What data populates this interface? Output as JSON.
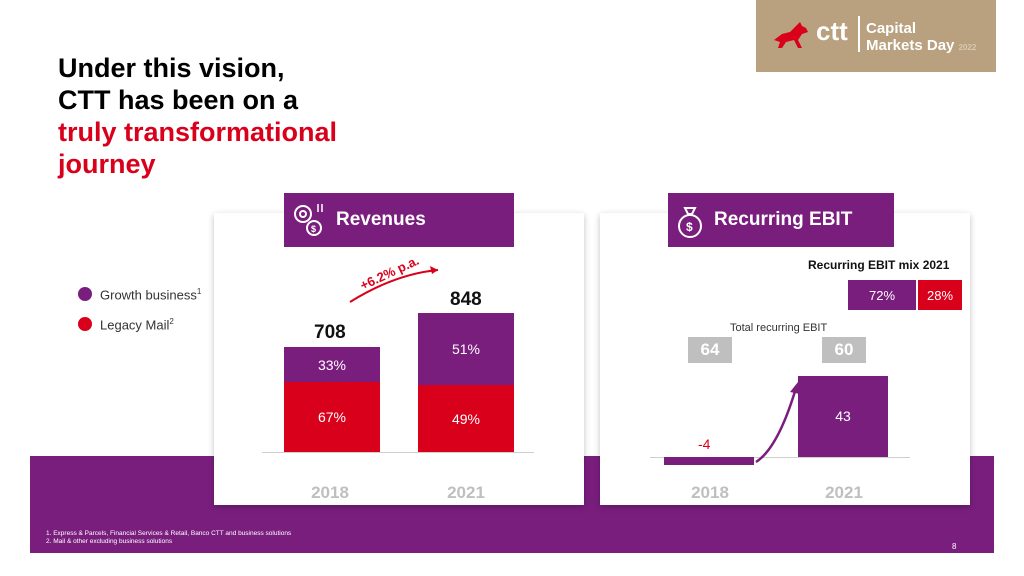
{
  "title": {
    "line1": "Under this vision,",
    "line2": "CTT has been on a",
    "line3": "truly transformational",
    "line4": "journey"
  },
  "logo": {
    "brand": "ctt",
    "line1": "Capital",
    "line2": "Markets Day",
    "year": "2022"
  },
  "legend": [
    {
      "label": "Growth business",
      "sup": "1",
      "color": "#7a1e7e"
    },
    {
      "label": "Legacy Mail",
      "sup": "2",
      "color": "#d9001b"
    }
  ],
  "revenues": {
    "header": "Revenues",
    "growth_label": "+6.2% p.a.",
    "totals": [
      "708",
      "848"
    ],
    "growth_pct": [
      "33%",
      "51%"
    ],
    "legacy_pct": [
      "67%",
      "49%"
    ],
    "years": [
      "2018",
      "2021"
    ]
  },
  "ebit": {
    "header": "Recurring EBIT",
    "mix_title": "Recurring EBIT mix 2021",
    "mix": [
      "72%",
      "28%"
    ],
    "total_label": "Total recurring EBIT",
    "totals": [
      "64",
      "60"
    ],
    "bar_labels": [
      "-4",
      "43"
    ],
    "years": [
      "2018",
      "2021"
    ]
  },
  "footnotes": [
    "1.    Express & Parcels, Financial Services & Retail, Banco CTT and business solutions",
    "2.    Mail & other excluding business solutions"
  ],
  "page_number": "8",
  "chart_data": [
    {
      "type": "bar",
      "title": "Revenues",
      "categories": [
        "2018",
        "2021"
      ],
      "totals": [
        708,
        848
      ],
      "series": [
        {
          "name": "Growth business",
          "values_pct": [
            33,
            51
          ]
        },
        {
          "name": "Legacy Mail",
          "values_pct": [
            67,
            49
          ]
        }
      ],
      "annotation": "+6.2% p.a."
    },
    {
      "type": "bar",
      "title": "Recurring EBIT",
      "categories": [
        "2018",
        "2021"
      ],
      "values": [
        -4,
        43
      ],
      "totals": [
        64,
        60
      ],
      "mix_2021_pct": [
        72,
        28
      ]
    }
  ],
  "colors": {
    "purple": "#7a1e7e",
    "red": "#d9001b",
    "grey": "#bfbfbf"
  }
}
